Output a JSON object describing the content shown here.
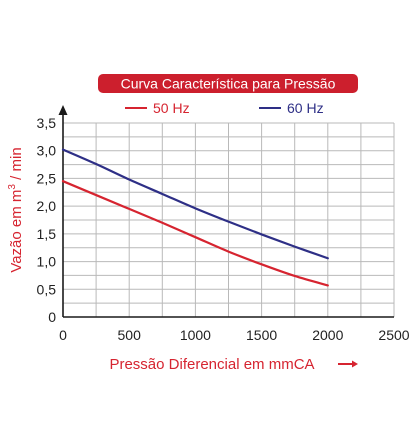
{
  "title_badge": {
    "text": "Curva Característica para Pressão",
    "bg_color": "#cc1f2d",
    "text_color": "#ffffff"
  },
  "chart_data": {
    "type": "line",
    "title": "Curva Característica para Pressão",
    "xlabel": "Pressão Diferencial em mmCA",
    "ylabel_parts": {
      "before_sup": "Vazão em m",
      "sup": "3",
      "after_sup": " / min"
    },
    "x_ticks": [
      0,
      500,
      1000,
      1500,
      2000,
      2500
    ],
    "y_ticks": [
      0,
      0.5,
      1.0,
      1.5,
      2.0,
      2.5,
      3.0,
      3.5
    ],
    "x_tick_labels": [
      "0",
      "500",
      "1000",
      "1500",
      "2000",
      "2500"
    ],
    "y_tick_labels": [
      "0",
      "0,5",
      "1,0",
      "1,5",
      "2,0",
      "2,5",
      "3,0",
      "3,5"
    ],
    "xlim": [
      0,
      2500
    ],
    "ylim": [
      0,
      3.5
    ],
    "grid": true,
    "legend_placement": "top",
    "series": [
      {
        "name": "50 Hz",
        "color": "#d62430",
        "x": [
          0,
          250,
          500,
          750,
          1000,
          1250,
          1500,
          1750,
          2000
        ],
        "y": [
          2.45,
          2.2,
          1.95,
          1.7,
          1.44,
          1.18,
          0.95,
          0.74,
          0.57
        ]
      },
      {
        "name": "60 Hz",
        "color": "#2e2f86",
        "x": [
          0,
          250,
          500,
          750,
          1000,
          1250,
          1500,
          1750,
          2000
        ],
        "y": [
          3.02,
          2.76,
          2.48,
          2.22,
          1.96,
          1.72,
          1.49,
          1.27,
          1.06
        ]
      }
    ],
    "xlabel_color": "#d62430",
    "ylabel_color": "#d62430",
    "tick_color": "#222222",
    "grid_color": "#b9b9b9"
  }
}
